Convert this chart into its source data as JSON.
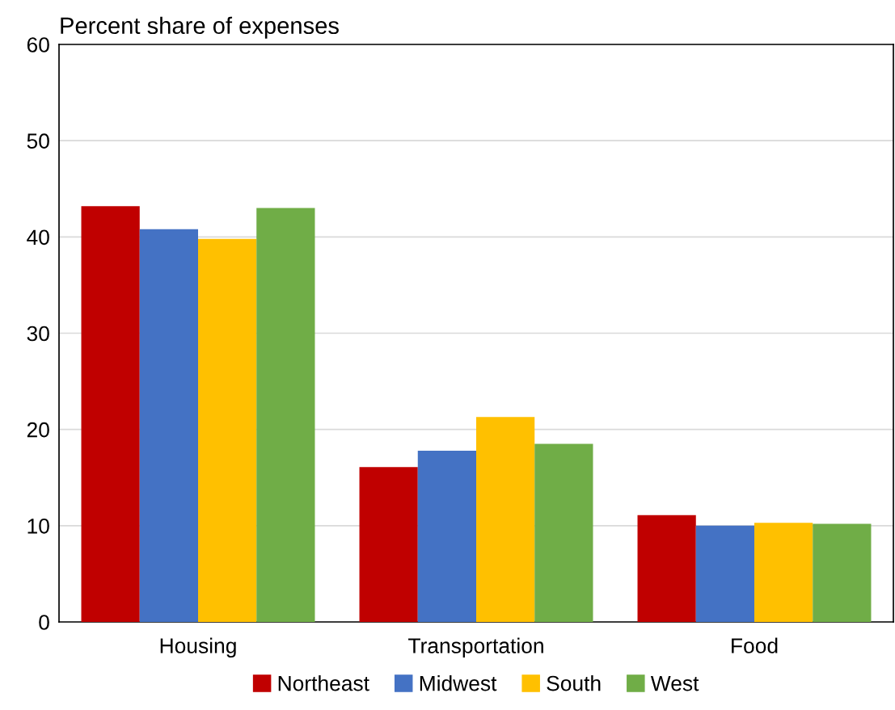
{
  "chart_data": {
    "type": "bar",
    "ylabel": "Percent share of expenses",
    "categories": [
      "Housing",
      "Transportation",
      "Food"
    ],
    "series": [
      {
        "name": "Northeast",
        "color": "#c00000",
        "values": [
          43.2,
          16.1,
          11.1
        ]
      },
      {
        "name": "Midwest",
        "color": "#4472c4",
        "values": [
          40.8,
          17.8,
          10.0
        ]
      },
      {
        "name": "South",
        "color": "#ffc000",
        "values": [
          39.8,
          21.3,
          10.3
        ]
      },
      {
        "name": "West",
        "color": "#70ad47",
        "values": [
          43.0,
          18.5,
          10.2
        ]
      }
    ],
    "ylim": [
      0,
      60
    ],
    "yticks": [
      0,
      10,
      20,
      30,
      40,
      50,
      60
    ],
    "grid": "y",
    "legend": "bottom"
  }
}
